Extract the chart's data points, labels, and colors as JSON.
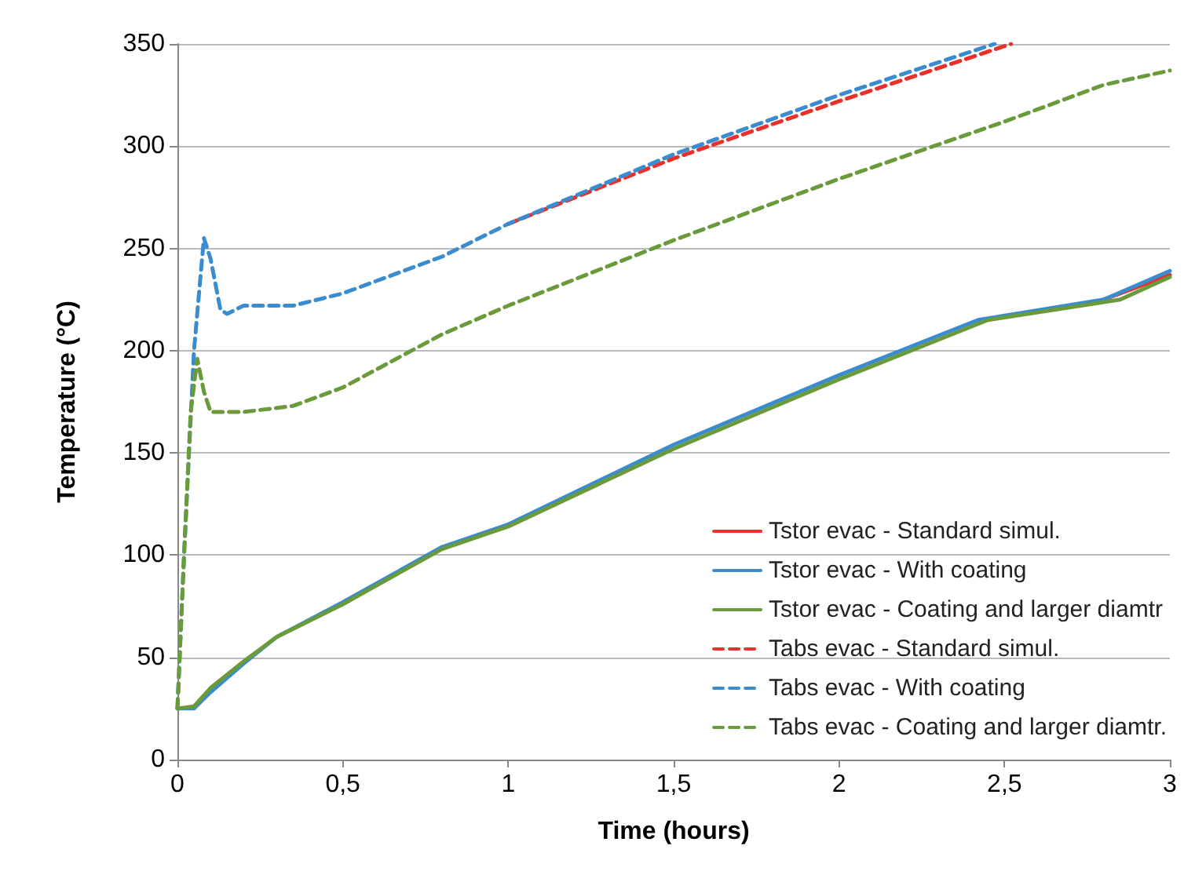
{
  "chart_data": {
    "type": "line",
    "xlabel": "Time (hours)",
    "ylabel": "Temperature (°C)",
    "xlim": [
      0,
      3
    ],
    "xticks": [
      0,
      {
        "value": 0.5,
        "label": "0,5"
      },
      1,
      {
        "value": 1.5,
        "label": "1,5"
      },
      2,
      {
        "value": 2.5,
        "label": "2,5"
      },
      3
    ],
    "ylim": [
      0,
      350
    ],
    "yticks": [
      0,
      50,
      100,
      150,
      200,
      250,
      300,
      350
    ],
    "grid": "y",
    "legend": "bottom right",
    "marker": "none",
    "series": [
      {
        "name": "Tstor evac - Standard simul.",
        "color": "#e8312a",
        "line_style": "solid",
        "x": [
          2.8,
          3.0
        ],
        "values": [
          225,
          237
        ]
      },
      {
        "name": "Tstor evac - With coating",
        "color": "#3a8ccf",
        "line_style": "solid",
        "x": [
          0,
          0.05,
          0.1,
          0.2,
          0.3,
          0.5,
          0.8,
          1.0,
          1.5,
          2.0,
          2.42,
          2.8,
          3.0
        ],
        "values": [
          25,
          25,
          33,
          47,
          60,
          77,
          104,
          115,
          154,
          188,
          215,
          225,
          239
        ]
      },
      {
        "name": "Tstor evac - Coating and larger diamtr",
        "color": "#6a9a3a",
        "line_style": "solid",
        "x": [
          0,
          0.05,
          0.1,
          0.2,
          0.3,
          0.5,
          0.8,
          1.0,
          1.5,
          2.0,
          2.45,
          2.85,
          3.0
        ],
        "values": [
          25,
          26,
          35,
          48,
          60,
          76,
          103,
          114,
          152,
          186,
          215,
          225,
          236
        ]
      },
      {
        "name": "Tabs evac - Standard simul.",
        "color": "#e8312a",
        "line_style": "dashed",
        "x": [
          1.0,
          1.5,
          2.0,
          2.52
        ],
        "values": [
          262,
          294,
          322,
          350
        ]
      },
      {
        "name": "Tabs evac - With coating",
        "color": "#3a8ccf",
        "line_style": "dashed",
        "x": [
          0,
          0.02,
          0.05,
          0.08,
          0.1,
          0.13,
          0.15,
          0.2,
          0.35,
          0.5,
          0.8,
          1.0,
          1.5,
          2.0,
          2.47
        ],
        "values": [
          25,
          100,
          200,
          255,
          245,
          220,
          218,
          222,
          222,
          228,
          246,
          262,
          296,
          325,
          350
        ]
      },
      {
        "name": "Tabs evac - Coating and larger diamtr.",
        "color": "#6a9a3a",
        "line_style": "dashed",
        "x": [
          0,
          0.02,
          0.04,
          0.06,
          0.08,
          0.1,
          0.2,
          0.35,
          0.5,
          0.8,
          1.0,
          1.5,
          2.0,
          2.5,
          2.8,
          3.0
        ],
        "values": [
          25,
          100,
          170,
          196,
          180,
          170,
          170,
          173,
          182,
          208,
          222,
          254,
          284,
          312,
          330,
          337
        ]
      }
    ]
  }
}
